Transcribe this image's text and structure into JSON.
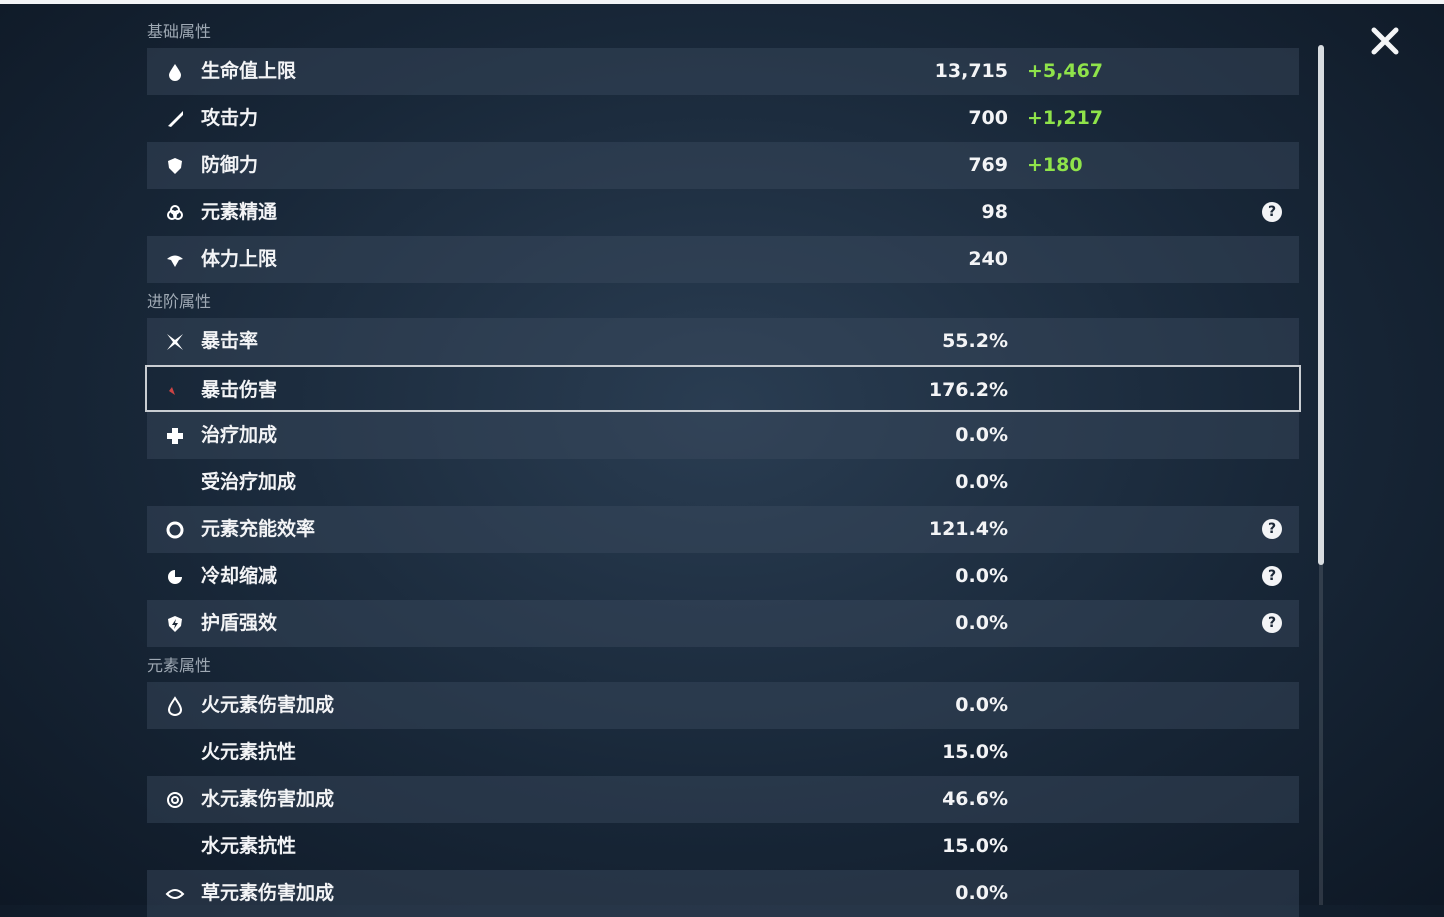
{
  "sections": [
    {
      "title": "基础属性",
      "rows": [
        {
          "label": "生命值上限",
          "value": "13,715",
          "bonus": "+5,467"
        },
        {
          "label": "攻击力",
          "value": "700",
          "bonus": "+1,217"
        },
        {
          "label": "防御力",
          "value": "769",
          "bonus": "+180"
        },
        {
          "label": "元素精通",
          "value": "98",
          "help": "?"
        },
        {
          "label": "体力上限",
          "value": "240"
        }
      ]
    },
    {
      "title": "进阶属性",
      "rows": [
        {
          "label": "暴击率",
          "value": "55.2%"
        },
        {
          "label": "暴击伤害",
          "value": "176.2%",
          "selected": true
        },
        {
          "label": "治疗加成",
          "value": "0.0%"
        },
        {
          "label": "受治疗加成",
          "value": "0.0%"
        },
        {
          "label": "元素充能效率",
          "value": "121.4%",
          "help": "?"
        },
        {
          "label": "冷却缩减",
          "value": "0.0%",
          "help": "?"
        },
        {
          "label": "护盾强效",
          "value": "0.0%",
          "help": "?"
        }
      ]
    },
    {
      "title": "元素属性",
      "rows": [
        {
          "label": "火元素伤害加成",
          "value": "0.0%"
        },
        {
          "label": "火元素抗性",
          "value": "15.0%"
        },
        {
          "label": "水元素伤害加成",
          "value": "46.6%"
        },
        {
          "label": "水元素抗性",
          "value": "15.0%"
        },
        {
          "label": "草元素伤害加成",
          "value": "0.0%"
        }
      ]
    }
  ]
}
